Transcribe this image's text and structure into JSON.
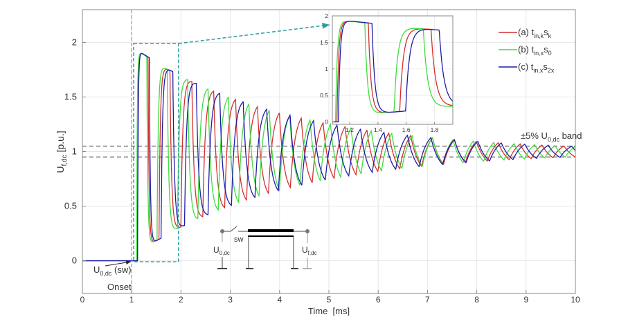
{
  "chart_data": {
    "type": "line",
    "xlabel": "Time  [ms]",
    "ylabel_main": "U",
    "ylabel_sub": "f,dc",
    "ylabel_unit": "[p.u.]",
    "xlim": [
      0,
      10
    ],
    "ylim": [
      -0.3,
      2.3
    ],
    "xticks": [
      0,
      1,
      2,
      3,
      4,
      5,
      6,
      7,
      8,
      9,
      10
    ],
    "yticks": [
      0,
      0.5,
      1,
      1.5,
      2
    ],
    "grid": true,
    "legend_position": "top-right",
    "band": {
      "lower": 0.95,
      "upper": 1.05,
      "label_prefix": "±5% U",
      "label_sub": "0,dc",
      "label_suffix": " band"
    },
    "onset_time": 1,
    "zoom_box": {
      "x": [
        1.04,
        1.95
      ],
      "y": [
        -0.01,
        1.99
      ]
    },
    "series": [
      {
        "legend": [
          "(a) t",
          "in,k",
          "s",
          "k"
        ],
        "color": "#d42f2f",
        "rise_time_ms": 1.11,
        "half_period_ms": 0.222,
        "first_peak": 1.93,
        "decay_ms": 3.0,
        "final_value": 1.0
      },
      {
        "legend": [
          "(b) t",
          "in,x",
          "s",
          "0"
        ],
        "color": "#3fdc3f",
        "rise_time_ms": 1.1,
        "half_period_ms": 0.207,
        "first_peak": 1.93,
        "decay_ms": 3.0,
        "final_value": 1.0
      },
      {
        "legend": [
          "(c) t",
          "in,x",
          "s",
          "2x"
        ],
        "color": "#1c1ca8",
        "rise_time_ms": 1.12,
        "half_period_ms": 0.238,
        "first_peak": 1.93,
        "decay_ms": 3.0,
        "final_value": 1.0
      }
    ],
    "inset": {
      "xlim": [
        1.077,
        1.93
      ],
      "ylim": [
        -0.045,
        2
      ],
      "xticks": [
        1.2,
        1.4,
        1.6,
        1.8
      ],
      "yticks": [
        0,
        0.5,
        1,
        1.5,
        2
      ]
    },
    "annotations": {
      "source_main": "U",
      "source_sub": "0,dc",
      "source_suffix": " (sw)",
      "onset": "Onset"
    },
    "circuit": {
      "switch_label": "sw",
      "source_main": "U",
      "source_sub": "0,dc",
      "output_main": "U",
      "output_sub": "f,dc"
    }
  }
}
